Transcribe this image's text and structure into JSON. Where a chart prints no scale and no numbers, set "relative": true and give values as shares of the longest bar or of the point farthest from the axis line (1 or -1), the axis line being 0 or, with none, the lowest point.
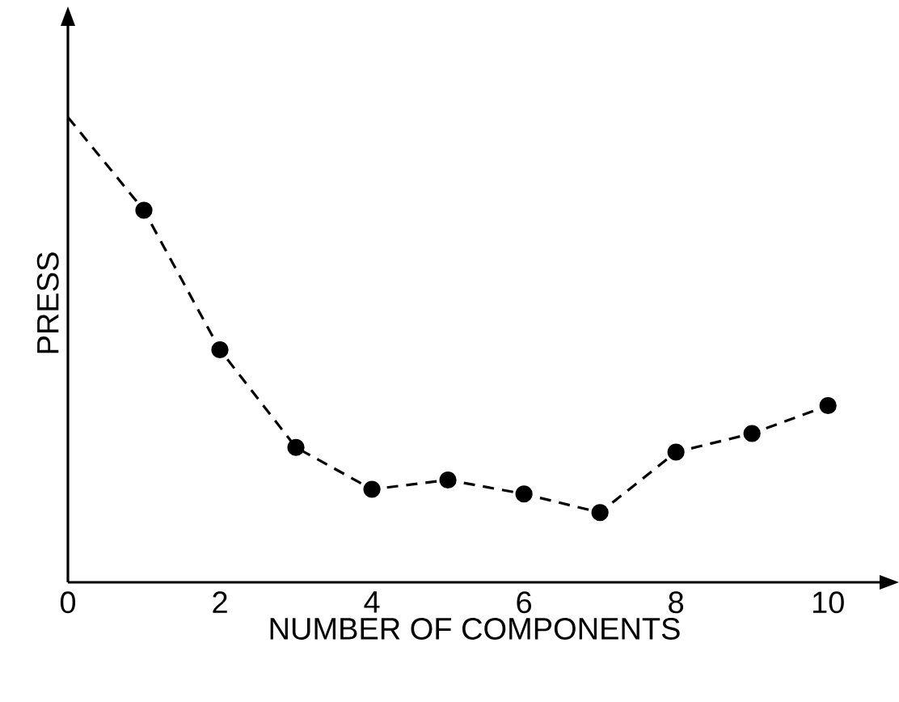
{
  "chart_data": {
    "type": "line",
    "relative": true,
    "xlabel": "NUMBER OF COMPONENTS",
    "ylabel": "PRESS",
    "xlim": [
      0,
      10.7
    ],
    "xticks": [
      0,
      2,
      4,
      6,
      8,
      10
    ],
    "grid": false,
    "series": [
      {
        "color": "#000000",
        "marker": "none",
        "line_style": "dashed",
        "x": [
          0,
          1,
          2,
          3,
          4,
          5,
          6,
          7,
          8,
          9,
          10
        ],
        "values": [
          1,
          0.8,
          0.5,
          0.29,
          0.2,
          0.22,
          0.19,
          0.15,
          0.28,
          0.32,
          0.38
        ]
      },
      {
        "type": "scatter",
        "color": "#000000",
        "marker": "circle",
        "x": [
          1,
          2,
          3,
          4,
          5,
          6,
          7,
          8,
          9,
          10
        ],
        "values": [
          0.8,
          0.5,
          0.29,
          0.2,
          0.22,
          0.19,
          0.15,
          0.28,
          0.32,
          0.38
        ]
      }
    ]
  }
}
